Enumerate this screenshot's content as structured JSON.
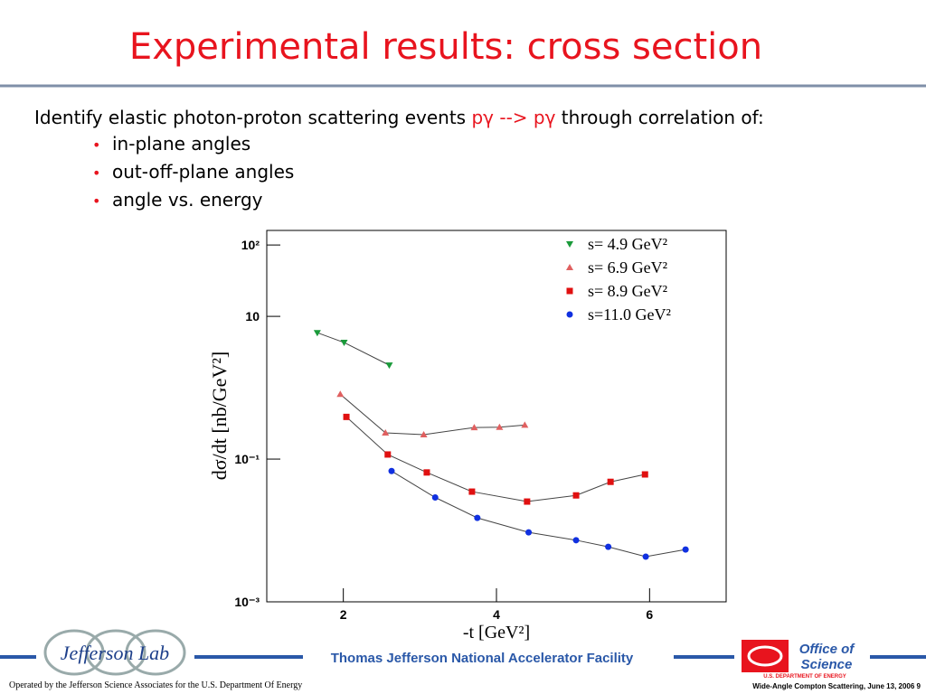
{
  "slide": {
    "title": "Experimental results: cross section",
    "intro": [
      "Identify elastic photon-proton scattering events ",
      "pγ --> pγ",
      "  through correlation of:"
    ],
    "bullets": [
      "in-plane angles",
      "out-off-plane angles",
      "angle vs. energy"
    ],
    "footer_center": "Thomas Jefferson National Accelerator Facility",
    "footer_left": "Operated by the Jefferson Science Associates for the U.S. Department Of Energy",
    "footer_right": "Wide-Angle Compton Scattering, June 13, 2006 9",
    "logo_left": "Jefferson Lab",
    "logo_right": [
      "Office of",
      "Science",
      "U.S. DEPARTMENT OF ENERGY"
    ]
  },
  "chart_data": {
    "type": "scatter",
    "xlabel": "-t  [GeV²]",
    "ylabel": "dσ/dt [nb/GeV²]",
    "xlim": [
      1,
      7
    ],
    "xticks": [
      2,
      4,
      6
    ],
    "ylim": [
      0.001,
      160
    ],
    "ylog": true,
    "yticks": [
      {
        "value": 100,
        "label": "10²"
      },
      10,
      {
        "value": 0.1,
        "label": "10⁻¹"
      },
      {
        "value": 0.001,
        "label": "10⁻³"
      }
    ],
    "legend": "upper right",
    "series": [
      {
        "name": "s=  4.9 GeV²",
        "color": "#1a9a3a",
        "marker": "triangle-down",
        "x": [
          1.66,
          2.01,
          2.6
        ],
        "values": [
          5.9,
          4.3,
          2.07
        ]
      },
      {
        "name": "s=  6.9 GeV²",
        "color": "#e06060",
        "marker": "triangle-up",
        "x": [
          1.96,
          2.55,
          3.05,
          3.71,
          4.04,
          4.37
        ],
        "values": [
          0.81,
          0.233,
          0.22,
          0.277,
          0.28,
          0.3
        ]
      },
      {
        "name": "s=  8.9 GeV²",
        "color": "#e01010",
        "marker": "square",
        "x": [
          2.04,
          2.58,
          3.09,
          3.68,
          4.4,
          5.04,
          5.49,
          5.94
        ],
        "values": [
          0.39,
          0.116,
          0.065,
          0.035,
          0.0254,
          0.031,
          0.048,
          0.061
        ]
      },
      {
        "name": "s=11.0 GeV²",
        "color": "#1030e0",
        "marker": "circle",
        "x": [
          2.63,
          3.2,
          3.75,
          4.42,
          5.04,
          5.46,
          5.95,
          6.47
        ],
        "values": [
          0.068,
          0.029,
          0.015,
          0.0094,
          0.0073,
          0.0059,
          0.0043,
          0.0054
        ]
      }
    ]
  }
}
